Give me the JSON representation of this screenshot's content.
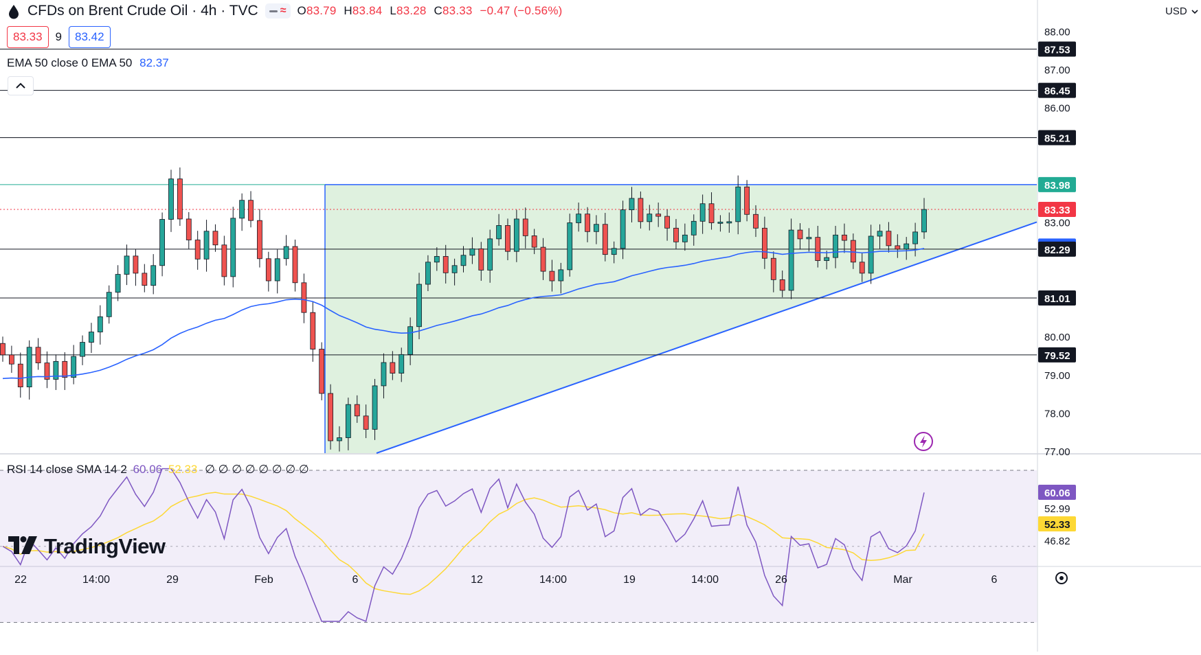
{
  "header": {
    "title": "CFDs on Brent Crude Oil · 4h · TVC",
    "ohlc": {
      "o_label": "O",
      "o": "83.79",
      "h_label": "H",
      "h": "83.84",
      "l_label": "L",
      "l": "83.28",
      "c_label": "C",
      "c": "83.33",
      "change": "−0.47 (−0.56%)"
    },
    "bid": "83.33",
    "spread": "9",
    "ask": "83.42",
    "ema_legend": "EMA 50 close 0 EMA 50",
    "ema_value": "82.37",
    "currency": "USD"
  },
  "rsi_legend": {
    "label": "RSI 14 close SMA 14 2",
    "rsi": "60.06",
    "sma": "52.33",
    "empties": "∅ ∅ ∅ ∅ ∅ ∅ ∅ ∅"
  },
  "brand": "TradingView",
  "colors": {
    "up": "#26a69a",
    "down": "#ef5350",
    "ema": "#2962ff",
    "rsi": "#7e57c2",
    "rsi_sma": "#fdd835",
    "zone": "#d9efd9",
    "price": "#f23645"
  },
  "chart_data": {
    "type": "candlestick",
    "symbol": "CFDs on Brent Crude Oil",
    "interval": "4h",
    "price_axis": {
      "ticks": [
        "88.00",
        "87.00",
        "86.00",
        "83.00",
        "80.00",
        "79.00",
        "78.00",
        "77.00"
      ],
      "ylim": [
        76.9,
        88.7
      ]
    },
    "time_axis": [
      "22",
      "14:00",
      "29",
      "Feb",
      "6",
      "12",
      "14:00",
      "19",
      "14:00",
      "26",
      "Mar",
      "6"
    ],
    "horizontal_levels": [
      87.53,
      86.45,
      85.21,
      83.98,
      82.29,
      81.01,
      79.52
    ],
    "price_labels": [
      {
        "text": "87.53",
        "value": 87.53,
        "bg": "#131722"
      },
      {
        "text": "86.45",
        "value": 86.45,
        "bg": "#131722"
      },
      {
        "text": "85.21",
        "value": 85.21,
        "bg": "#131722"
      },
      {
        "text": "83.98",
        "value": 83.98,
        "bg": "#22ab94"
      },
      {
        "text": "83.33",
        "value": 83.33,
        "bg": "#f23645"
      },
      {
        "text": "82.37",
        "value": 82.37,
        "bg": "#2962ff"
      },
      {
        "text": "82.29",
        "value": 82.29,
        "bg": "#131722"
      },
      {
        "text": "81.01",
        "value": 81.01,
        "bg": "#131722"
      },
      {
        "text": "79.52",
        "value": 79.52,
        "bg": "#131722"
      }
    ],
    "last_price": 83.33,
    "ema50_last": 82.37,
    "ascending_triangle": {
      "resistance": 83.98,
      "support_start": 76.9,
      "support_end": 83.0
    },
    "candles": [
      79.52,
      79.28,
      78.68,
      79.72,
      79.31,
      78.88,
      79.35,
      78.93,
      79.48,
      79.85,
      80.12,
      80.52,
      81.16,
      81.63,
      82.11,
      81.66,
      81.34,
      81.86,
      83.07,
      84.13,
      83.08,
      82.53,
      82.03,
      82.76,
      82.4,
      81.57,
      83.1,
      83.57,
      83.04,
      82.04,
      81.46,
      82.04,
      82.36,
      81.41,
      80.63,
      79.67,
      78.51,
      77.27,
      77.35,
      78.22,
      77.92,
      77.57,
      78.71,
      79.32,
      79.04,
      79.53,
      80.26,
      81.37,
      81.95,
      82.1,
      81.67,
      81.86,
      82.13,
      82.3,
      81.74,
      82.56,
      82.91,
      82.23,
      83.08,
      82.64,
      82.34,
      81.71,
      81.46,
      81.75,
      82.98,
      83.21,
      82.75,
      82.94,
      82.15,
      82.31,
      83.32,
      83.62,
      83.01,
      83.21,
      83.15,
      82.84,
      82.48,
      82.66,
      83.02,
      83.48,
      82.98,
      83.0,
      83.01,
      83.92,
      83.2,
      82.84,
      82.05,
      81.49,
      81.21,
      82.79,
      82.56,
      82.6,
      81.99,
      82.07,
      82.66,
      82.52,
      81.95,
      81.66,
      82.63,
      82.76,
      82.38,
      82.29,
      82.43,
      82.74,
      83.33
    ],
    "rsi": {
      "value": 60.06,
      "sma": 52.33,
      "levels": [
        60.06,
        52.99,
        52.33,
        46.82
      ],
      "band": [
        46.82,
        52.99
      ]
    }
  }
}
